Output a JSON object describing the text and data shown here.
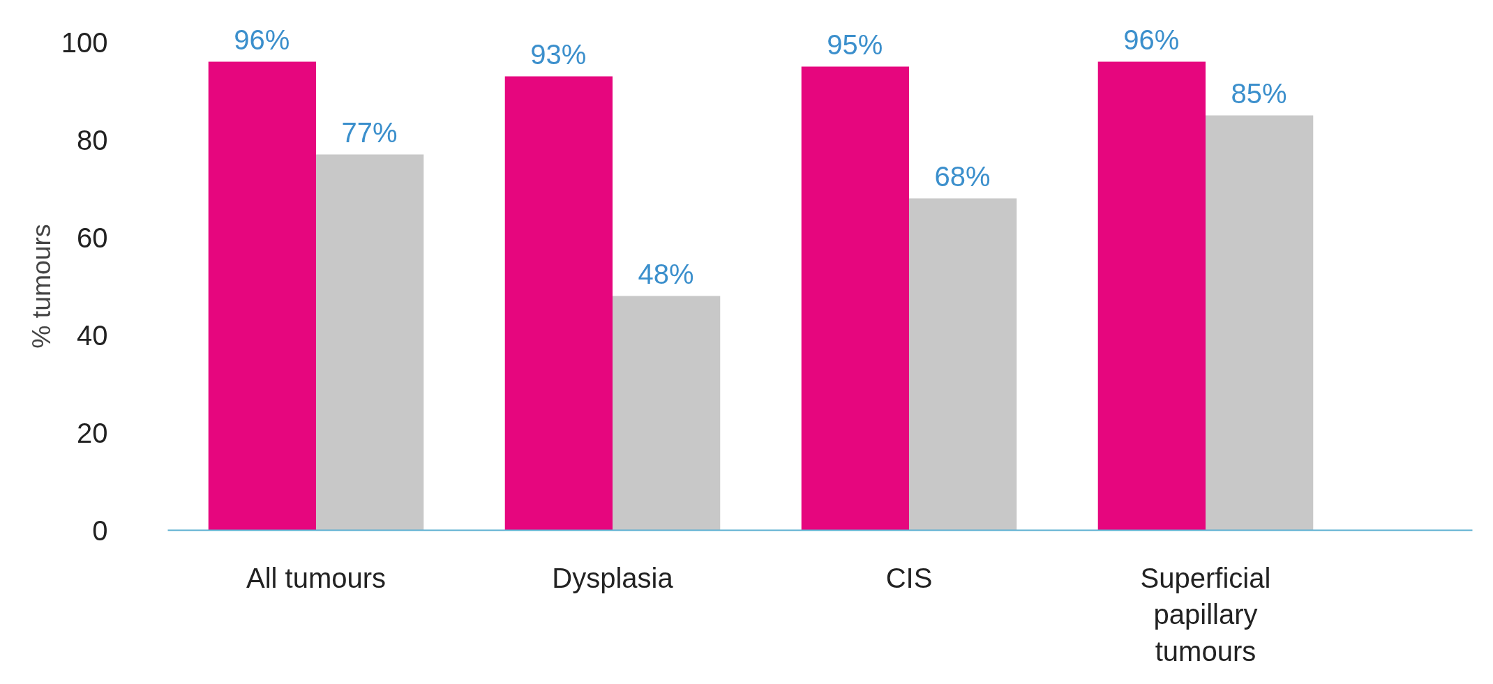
{
  "chart_data": {
    "type": "bar",
    "ylabel": "% tumours",
    "categories": [
      "All tumours",
      "Dysplasia",
      "CIS",
      "Superficial papillary tumours"
    ],
    "series": [
      {
        "color": "#e6067e",
        "values": [
          96,
          93,
          95,
          96
        ],
        "value_labels": [
          "96%",
          "93%",
          "95%",
          "96%"
        ]
      },
      {
        "color": "#c8c8c8",
        "values": [
          77,
          48,
          68,
          85
        ],
        "value_labels": [
          "77%",
          "48%",
          "68%",
          "85%"
        ]
      }
    ],
    "ylim": [
      0,
      100
    ],
    "yticks": [
      0,
      20,
      40,
      60,
      80,
      100
    ],
    "grid": false
  }
}
